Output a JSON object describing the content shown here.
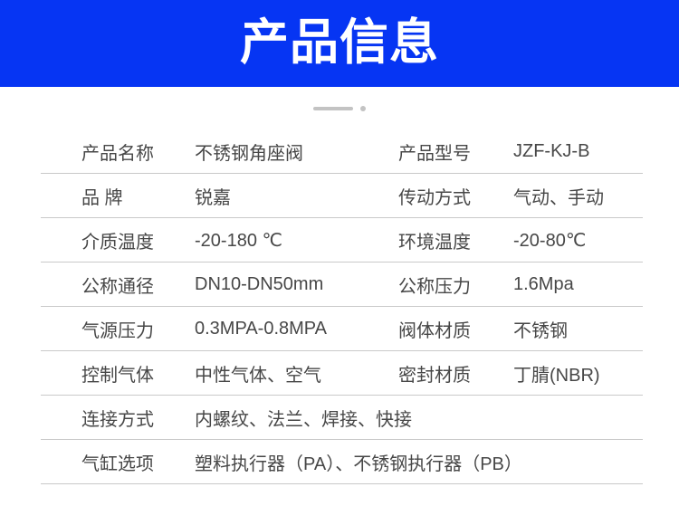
{
  "banner": {
    "title": "产品信息",
    "bg_color": "#0635f3",
    "text_color": "#ffffff"
  },
  "decoration": {
    "color": "#c3c3c3"
  },
  "table": {
    "divider_color": "#c9c9c9",
    "text_color": "#474747",
    "rows": [
      {
        "cells": [
          {
            "label": "产品名称",
            "value": "不锈钢角座阀"
          },
          {
            "label": "产品型号",
            "value": "JZF-KJ-B"
          }
        ]
      },
      {
        "cells": [
          {
            "label": "品 牌",
            "value": "锐嘉"
          },
          {
            "label": "传动方式",
            "value": "气动、手动"
          }
        ]
      },
      {
        "cells": [
          {
            "label": "介质温度",
            "value": "-20-180 ℃"
          },
          {
            "label": "环境温度",
            "value": "-20-80℃"
          }
        ]
      },
      {
        "cells": [
          {
            "label": "公称通径",
            "value": "DN10-DN50mm"
          },
          {
            "label": "公称压力",
            "value": "1.6Mpa"
          }
        ]
      },
      {
        "cells": [
          {
            "label": "气源压力",
            "value": "0.3MPA-0.8MPA"
          },
          {
            "label": "阀体材质",
            "value": "不锈钢"
          }
        ]
      },
      {
        "cells": [
          {
            "label": "控制气体",
            "value": "中性气体、空气"
          },
          {
            "label": "密封材质",
            "value": "丁腈(NBR)"
          }
        ]
      },
      {
        "cells": [
          {
            "label": "连接方式",
            "value": "内螺纹、法兰、焊接、快接"
          }
        ]
      },
      {
        "cells": [
          {
            "label": "气缸选项",
            "value": "塑料执行器（PA）、不锈钢执行器（PB）"
          }
        ]
      }
    ]
  }
}
